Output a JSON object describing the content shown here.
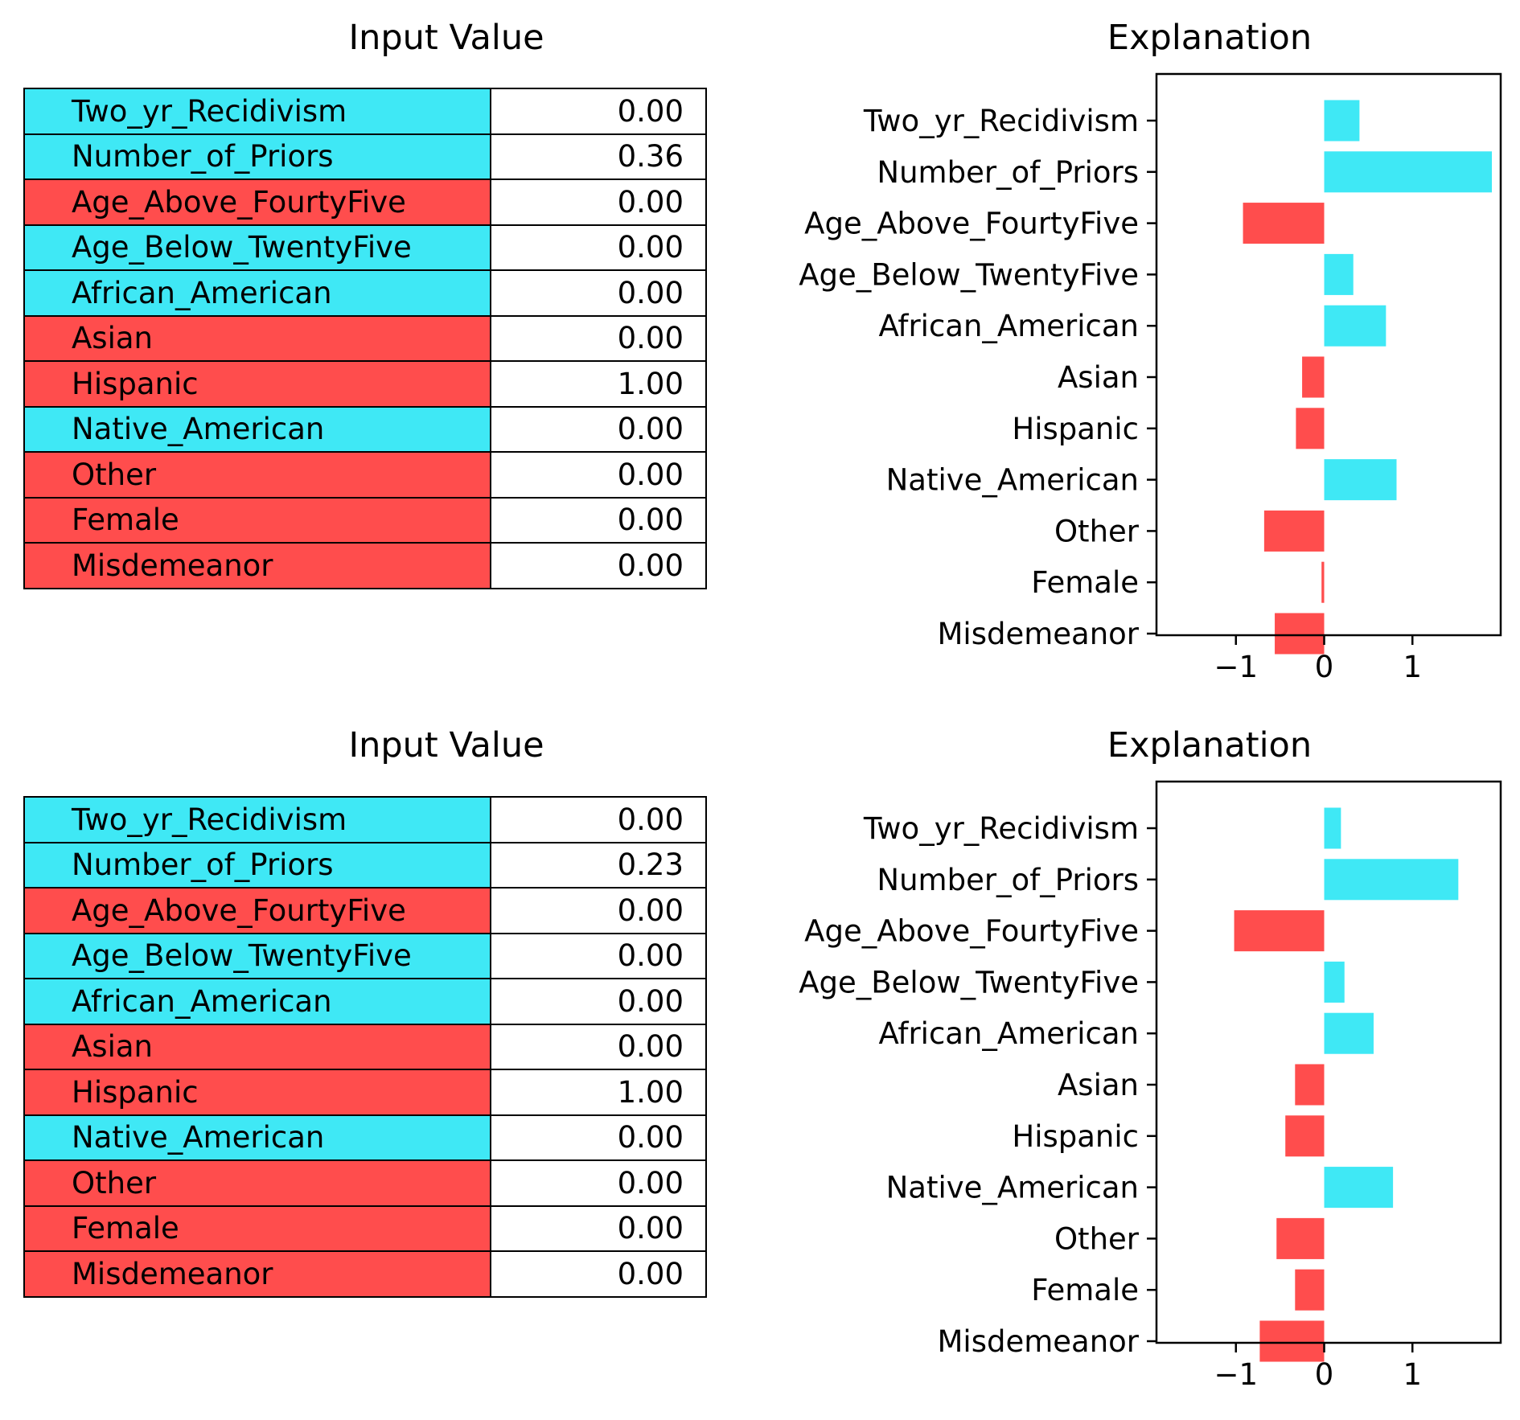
{
  "colors": {
    "positive": "#3fe8f5",
    "negative": "#ff4d4d"
  },
  "panels": [
    {
      "table_title": "Input Value",
      "chart_title": "Explanation",
      "rows": [
        {
          "label": "Two_yr_Recidivism",
          "value": "0.00",
          "sign": "positive"
        },
        {
          "label": "Number_of_Priors",
          "value": "0.36",
          "sign": "positive"
        },
        {
          "label": "Age_Above_FourtyFive",
          "value": "0.00",
          "sign": "negative"
        },
        {
          "label": "Age_Below_TwentyFive",
          "value": "0.00",
          "sign": "positive"
        },
        {
          "label": "African_American",
          "value": "0.00",
          "sign": "positive"
        },
        {
          "label": "Asian",
          "value": "0.00",
          "sign": "negative"
        },
        {
          "label": "Hispanic",
          "value": "1.00",
          "sign": "negative"
        },
        {
          "label": "Native_American",
          "value": "0.00",
          "sign": "positive"
        },
        {
          "label": "Other",
          "value": "0.00",
          "sign": "negative"
        },
        {
          "label": "Female",
          "value": "0.00",
          "sign": "negative"
        },
        {
          "label": "Misdemeanor",
          "value": "0.00",
          "sign": "negative"
        }
      ]
    },
    {
      "table_title": "Input Value",
      "chart_title": "Explanation",
      "rows": [
        {
          "label": "Two_yr_Recidivism",
          "value": "0.00",
          "sign": "positive"
        },
        {
          "label": "Number_of_Priors",
          "value": "0.23",
          "sign": "positive"
        },
        {
          "label": "Age_Above_FourtyFive",
          "value": "0.00",
          "sign": "negative"
        },
        {
          "label": "Age_Below_TwentyFive",
          "value": "0.00",
          "sign": "positive"
        },
        {
          "label": "African_American",
          "value": "0.00",
          "sign": "positive"
        },
        {
          "label": "Asian",
          "value": "0.00",
          "sign": "negative"
        },
        {
          "label": "Hispanic",
          "value": "1.00",
          "sign": "negative"
        },
        {
          "label": "Native_American",
          "value": "0.00",
          "sign": "positive"
        },
        {
          "label": "Other",
          "value": "0.00",
          "sign": "negative"
        },
        {
          "label": "Female",
          "value": "0.00",
          "sign": "negative"
        },
        {
          "label": "Misdemeanor",
          "value": "0.00",
          "sign": "negative"
        }
      ]
    }
  ],
  "chart_data": [
    {
      "type": "bar",
      "orientation": "horizontal",
      "title": "Explanation",
      "categories": [
        "Two_yr_Recidivism",
        "Number_of_Priors",
        "Age_Above_FourtyFive",
        "Age_Below_TwentyFive",
        "African_American",
        "Asian",
        "Hispanic",
        "Native_American",
        "Other",
        "Female",
        "Misdemeanor"
      ],
      "values": [
        0.4,
        1.9,
        -0.92,
        0.33,
        0.7,
        -0.25,
        -0.32,
        0.82,
        -0.68,
        -0.03,
        -0.56
      ],
      "xticks": [
        -1,
        0,
        1
      ],
      "xtick_labels": [
        "−1",
        "0",
        "1"
      ],
      "xlim": [
        -1.9,
        2.0
      ],
      "grid": false
    },
    {
      "type": "bar",
      "orientation": "horizontal",
      "title": "Explanation",
      "categories": [
        "Two_yr_Recidivism",
        "Number_of_Priors",
        "Age_Above_FourtyFive",
        "Age_Below_TwentyFive",
        "African_American",
        "Asian",
        "Hispanic",
        "Native_American",
        "Other",
        "Female",
        "Misdemeanor"
      ],
      "values": [
        0.19,
        1.52,
        -1.02,
        0.23,
        0.56,
        -0.33,
        -0.44,
        0.78,
        -0.54,
        -0.33,
        -0.73
      ],
      "xticks": [
        -1,
        0,
        1
      ],
      "xtick_labels": [
        "−1",
        "0",
        "1"
      ],
      "xlim": [
        -1.9,
        2.0
      ],
      "grid": false
    }
  ]
}
